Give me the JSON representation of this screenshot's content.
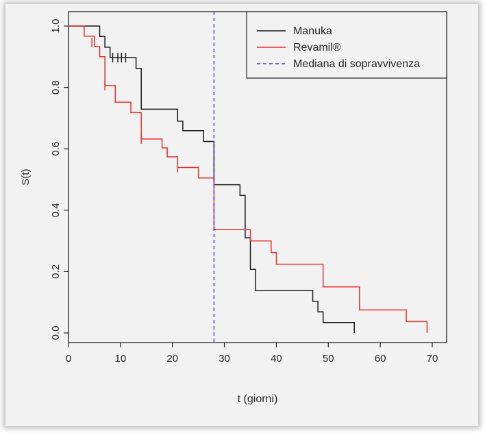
{
  "chart_data": {
    "type": "line",
    "subtype": "kaplan-meier step curves",
    "xlabel": "t (giorni)",
    "ylabel": "S(t)",
    "xlim": [
      0,
      70
    ],
    "ylim": [
      0,
      1
    ],
    "x_ticks": [
      0,
      10,
      20,
      30,
      40,
      50,
      60,
      70
    ],
    "y_ticks": [
      "0.0",
      "0.2",
      "0.4",
      "0.6",
      "0.8",
      "1.0"
    ],
    "legend_position": "top-right",
    "series": [
      {
        "name": "Manuka",
        "color": "#1a1a1a",
        "x": [
          0,
          6,
          7,
          8,
          13,
          14,
          21,
          22,
          26,
          28,
          33,
          34,
          35,
          36,
          47,
          48,
          49,
          55
        ],
        "y": [
          1.0,
          0.966,
          0.931,
          0.897,
          0.862,
          0.729,
          0.69,
          0.659,
          0.624,
          0.483,
          0.448,
          0.31,
          0.207,
          0.138,
          0.103,
          0.069,
          0.034,
          0.0
        ],
        "censor_x": [
          8.5,
          9.5,
          10.2,
          11
        ],
        "censor_y": [
          0.897,
          0.897,
          0.897,
          0.897
        ]
      },
      {
        "name": "Revamil®",
        "color": "#e8302f",
        "x": [
          0,
          3,
          5,
          6,
          7,
          9,
          12,
          14,
          18,
          19,
          21,
          25,
          28,
          35,
          39,
          40,
          49,
          56,
          65,
          69
        ],
        "y": [
          1.0,
          0.967,
          0.933,
          0.9,
          0.806,
          0.752,
          0.718,
          0.632,
          0.603,
          0.574,
          0.539,
          0.505,
          0.337,
          0.3,
          0.262,
          0.224,
          0.15,
          0.075,
          0.037,
          0.0
        ],
        "censor_x": [
          4.5,
          7,
          14,
          21
        ],
        "censor_y": [
          0.946,
          0.806,
          0.632,
          0.539
        ]
      }
    ],
    "reference_line": {
      "name": "Mediana di sopravvivenza",
      "x": 28,
      "color": "#3b3bdc",
      "style": "dashed"
    }
  }
}
